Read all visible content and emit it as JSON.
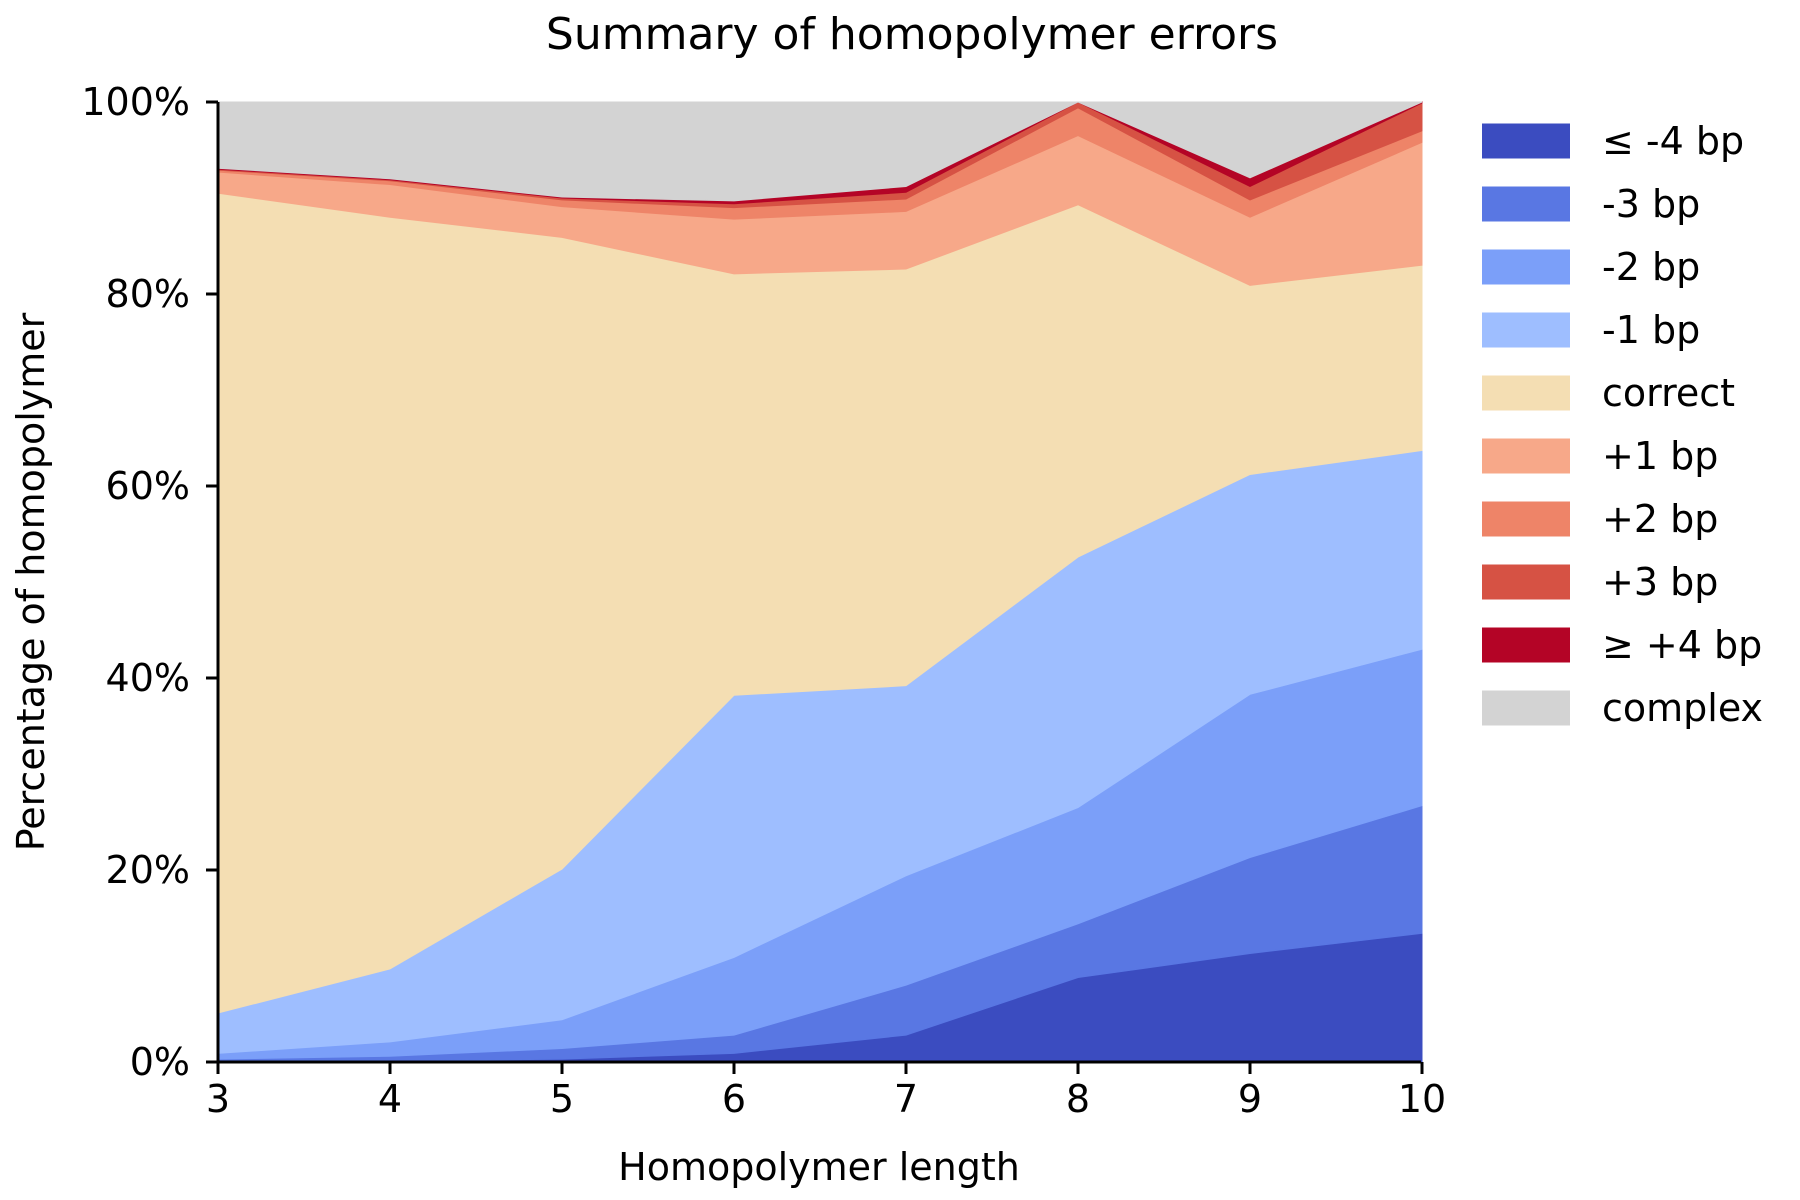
{
  "chart_data": {
    "type": "area",
    "stacked": true,
    "title": "Summary of homopolymer errors",
    "xlabel": "Homopolymer length",
    "ylabel": "Percentage of homopolymer",
    "x": [
      3,
      4,
      5,
      6,
      7,
      8,
      9,
      10
    ],
    "xlim": [
      3,
      10
    ],
    "ylim": [
      0,
      100
    ],
    "y_ticks": [
      "0%",
      "20%",
      "40%",
      "60%",
      "80%",
      "100%"
    ],
    "x_ticks": [
      "3",
      "4",
      "5",
      "6",
      "7",
      "8",
      "9",
      "10"
    ],
    "grid": false,
    "legend_position": "right",
    "series": [
      {
        "name": "≤ -4 bp",
        "color": "#3b4cc0",
        "values": [
          0.0,
          0.1,
          0.3,
          0.9,
          2.8,
          8.8,
          11.3,
          13.4
        ]
      },
      {
        "name": "-3 bp",
        "color": "#5977e3",
        "values": [
          0.3,
          0.5,
          1.1,
          1.9,
          5.2,
          5.6,
          10.0,
          13.3
        ]
      },
      {
        "name": "-2 bp",
        "color": "#7b9ff9",
        "values": [
          0.6,
          1.5,
          3.0,
          8.1,
          11.4,
          12.1,
          17.0,
          16.3
        ]
      },
      {
        "name": "-1 bp",
        "color": "#9ebeff",
        "values": [
          4.2,
          7.6,
          15.7,
          27.3,
          19.8,
          26.1,
          22.9,
          20.7
        ]
      },
      {
        "name": "correct",
        "color": "#f4deb3",
        "values": [
          85.4,
          78.3,
          65.8,
          43.9,
          43.4,
          36.7,
          19.7,
          19.3
        ]
      },
      {
        "name": "+1 bp",
        "color": "#f7a889",
        "values": [
          2.2,
          3.4,
          3.2,
          5.7,
          6.0,
          7.2,
          7.1,
          12.8
        ]
      },
      {
        "name": "+2 bp",
        "color": "#ee8468",
        "values": [
          0.2,
          0.4,
          0.7,
          1.2,
          1.3,
          2.9,
          1.8,
          1.2
        ]
      },
      {
        "name": "+3 bp",
        "color": "#d65244",
        "values": [
          0.1,
          0.1,
          0.2,
          0.4,
          0.7,
          0.6,
          1.4,
          2.9
        ]
      },
      {
        "name": "≥ +4 bp",
        "color": "#b40426",
        "values": [
          0.1,
          0.1,
          0.1,
          0.3,
          0.6,
          0.8,
          0.9,
          1.6
        ]
      },
      {
        "name": "complex",
        "color": "#d3d3d3",
        "values": [
          6.9,
          8.0,
          9.9,
          10.3,
          8.8,
          0.0,
          7.9,
          0.0
        ]
      }
    ]
  }
}
